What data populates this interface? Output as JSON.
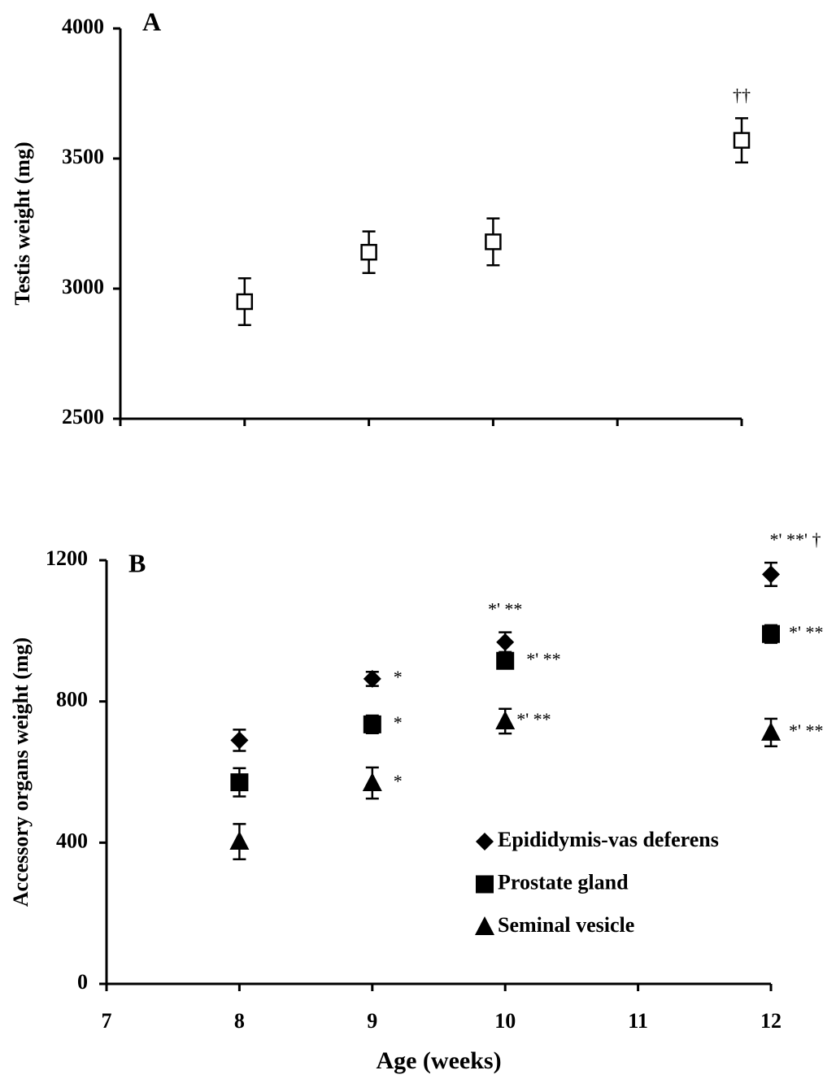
{
  "chart_data": [
    {
      "type": "scatter",
      "panel_label": "A",
      "y_label": "Testis weight (mg)",
      "x": [
        8,
        9,
        10,
        12
      ],
      "xlim": [
        7,
        12
      ],
      "xticks": [
        7,
        8,
        9,
        10,
        11,
        12
      ],
      "show_xtick_labels": false,
      "ylim": [
        2500,
        4000
      ],
      "yticks": [
        2500,
        3000,
        3500,
        4000
      ],
      "series": [
        {
          "marker": "open-square",
          "color": "#000000",
          "values": [
            2950,
            3140,
            3180,
            3570
          ],
          "errors": [
            90,
            80,
            90,
            85
          ],
          "point_labels": [
            null,
            null,
            null,
            "††"
          ]
        }
      ]
    },
    {
      "type": "scatter",
      "panel_label": "B",
      "y_label": "Accessory organs weight (mg)",
      "x_label": "Age (weeks)",
      "x": [
        8,
        9,
        10,
        12
      ],
      "xlim": [
        7,
        12
      ],
      "xticks": [
        7,
        8,
        9,
        10,
        11,
        12
      ],
      "show_xtick_labels": true,
      "ylim": [
        0,
        1200
      ],
      "yticks": [
        0,
        400,
        800,
        1200
      ],
      "legend": "lower-right",
      "series": [
        {
          "name": "Epididymis-vas deferens",
          "marker": "diamond",
          "color": "#000000",
          "values": [
            690,
            864,
            968,
            1160
          ],
          "errors": [
            30,
            20,
            28,
            33
          ],
          "point_labels": [
            null,
            "*",
            "*' **",
            "*' **' †"
          ]
        },
        {
          "name": "Prostate gland",
          "marker": "square",
          "color": "#000000",
          "values": [
            571,
            735,
            915,
            991
          ],
          "errors": [
            40,
            25,
            20,
            25
          ],
          "point_labels": [
            null,
            "*",
            "*' **",
            "*' **"
          ]
        },
        {
          "name": "Seminal vesicle",
          "marker": "triangle",
          "color": "#000000",
          "values": [
            403,
            569,
            744,
            712
          ],
          "errors": [
            50,
            44,
            35,
            39
          ],
          "point_labels": [
            null,
            "*",
            "*' **",
            "*' **"
          ]
        }
      ]
    }
  ]
}
